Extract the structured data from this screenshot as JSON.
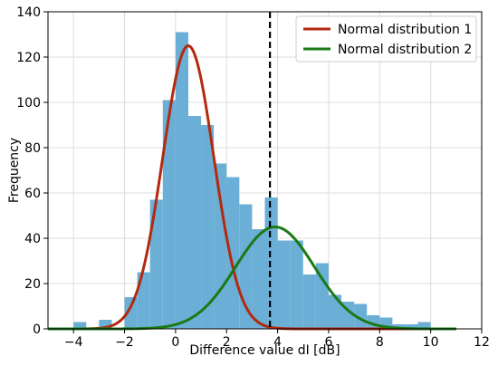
{
  "chart_data": {
    "type": "bar",
    "title": "",
    "xlabel": "Difference value dI [dB]",
    "ylabel": "Frequency",
    "xlim": [
      -5,
      12
    ],
    "ylim": [
      0,
      140
    ],
    "xticks": [
      -4,
      -2,
      0,
      2,
      4,
      6,
      8,
      10,
      12
    ],
    "yticks": [
      0,
      20,
      40,
      60,
      80,
      100,
      120,
      140
    ],
    "xtick_labels": [
      "−4",
      "−2",
      "0",
      "2",
      "4",
      "6",
      "8",
      "10",
      "12"
    ],
    "ytick_labels": [
      "0",
      "20",
      "40",
      "60",
      "80",
      "100",
      "120",
      "140"
    ],
    "grid": true,
    "legend_position": "top-right",
    "histogram": {
      "color": "#6baed6",
      "bin_width": 0.5,
      "bin_starts": [
        -4.0,
        -3.5,
        -3.0,
        -2.5,
        -2.0,
        -1.5,
        -1.0,
        -0.5,
        0.0,
        0.5,
        1.0,
        1.5,
        2.0,
        2.5,
        3.0,
        3.5,
        4.0,
        4.5,
        5.0,
        5.5,
        6.0,
        6.5,
        7.0,
        7.5,
        8.0,
        8.5,
        9.0,
        9.5
      ],
      "counts": [
        3,
        0,
        4,
        0,
        14,
        25,
        57,
        101,
        131,
        94,
        90,
        73,
        67,
        55,
        44,
        58,
        39,
        39,
        24,
        29,
        15,
        12,
        11,
        6,
        5,
        2,
        2,
        3
      ]
    },
    "series": [
      {
        "name": "Normal distribution 1",
        "type": "normal-curve",
        "color": "#b22a10",
        "mean": 0.5,
        "std": 1.0,
        "peak": 125
      },
      {
        "name": "Normal distribution 2",
        "type": "normal-curve",
        "color": "#1a7a14",
        "mean": 3.9,
        "std": 1.55,
        "peak": 45
      }
    ],
    "threshold_line": {
      "x": 3.7,
      "style": "dashed",
      "color": "#000000"
    },
    "curve_x_range": [
      -5,
      11
    ]
  }
}
